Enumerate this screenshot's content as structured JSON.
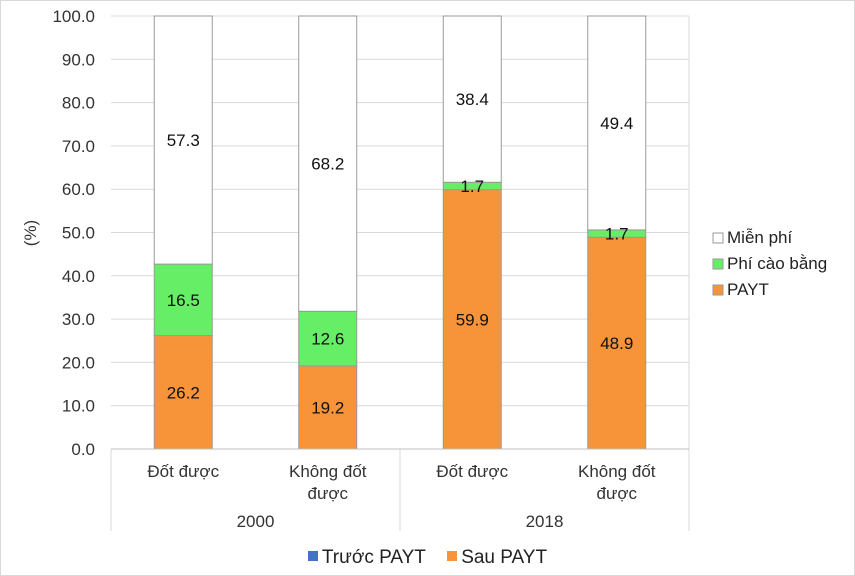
{
  "chart_data": {
    "type": "bar",
    "stacked": true,
    "ylabel": "(%)",
    "ylim": [
      0,
      100
    ],
    "yticks": [
      "0.0",
      "10.0",
      "20.0",
      "30.0",
      "40.0",
      "50.0",
      "60.0",
      "70.0",
      "80.0",
      "90.0",
      "100.0"
    ],
    "categories": [
      {
        "label_lines": [
          "Đốt được"
        ],
        "group": "2000"
      },
      {
        "label_lines": [
          "Không đốt",
          "được"
        ],
        "group": "2000"
      },
      {
        "label_lines": [
          "Đốt được"
        ],
        "group": "2018"
      },
      {
        "label_lines": [
          "Không đốt",
          "được"
        ],
        "group": "2018"
      }
    ],
    "groups": [
      "2000",
      "2018"
    ],
    "series": [
      {
        "name": "PAYT",
        "color": "#f7943a",
        "values": [
          26.2,
          19.2,
          59.9,
          48.9
        ],
        "labels": [
          "26.2",
          "19.2",
          "59.9",
          "48.9"
        ]
      },
      {
        "name": "Phí cào bằng",
        "color": "#66ee66",
        "values": [
          16.5,
          12.6,
          1.7,
          1.7
        ],
        "labels": [
          "16.5",
          "12.6",
          "1.7",
          "1.7"
        ]
      },
      {
        "name": "Miễn phí",
        "color": "#ffffff",
        "values": [
          57.3,
          68.2,
          38.4,
          49.4
        ],
        "labels": [
          "57.3",
          "68.2",
          "38.4",
          "49.4"
        ]
      }
    ],
    "legend_right": [
      "Miễn phí",
      "Phí cào bằng",
      "PAYT"
    ],
    "legend_bottom": [
      {
        "label": "Trước PAYT",
        "color": "#4472c4"
      },
      {
        "label": "Sau PAYT",
        "color": "#f7943a"
      }
    ]
  }
}
